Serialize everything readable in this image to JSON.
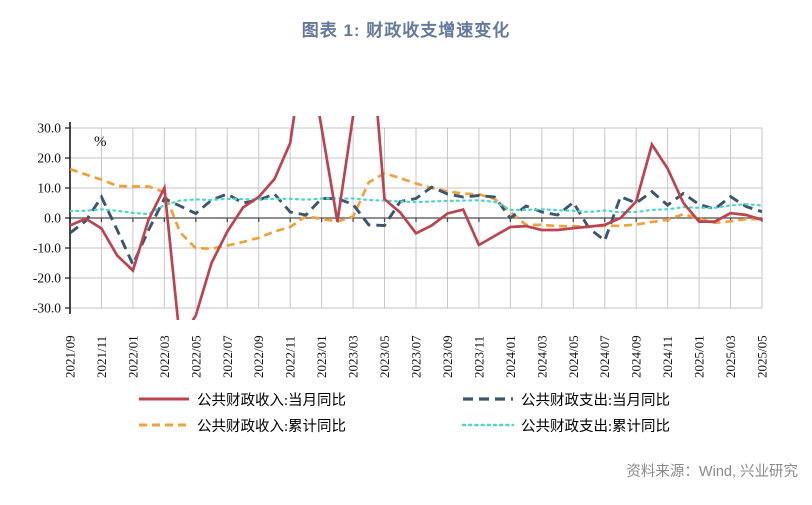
{
  "title": "图表 1:  财政收支增速变化",
  "title_color": "#64799c",
  "source_note": "资料来源：Wind, 兴业研究",
  "source_color": "#8a8a8a",
  "chart_data": {
    "type": "line",
    "unit_label": "%",
    "ylim": [
      -30,
      30
    ],
    "y_ticks": [
      "30.0",
      "20.0",
      "10.0",
      "0.0",
      "-10.0",
      "-20.0",
      "-30.0"
    ],
    "grid": "on",
    "legend_position": "bottom",
    "x_tick_labels": [
      "2021/09",
      "2021/11",
      "2022/01",
      "2022/03",
      "2022/05",
      "2022/07",
      "2022/09",
      "2022/11",
      "2023/01",
      "2023/03",
      "2023/05",
      "2023/07",
      "2023/09",
      "2023/11",
      "2024/01",
      "2024/03",
      "2024/05",
      "2024/07",
      "2024/09",
      "2024/11",
      "2025/01",
      "2025/03",
      "2025/05"
    ],
    "months": [
      "2021/09",
      "2021/10",
      "2021/11",
      "2021/12",
      "2022/01",
      "2022/02",
      "2022/03",
      "2022/04",
      "2022/05",
      "2022/06",
      "2022/07",
      "2022/08",
      "2022/09",
      "2022/10",
      "2022/11",
      "2022/12",
      "2023/01",
      "2023/02",
      "2023/03",
      "2023/04",
      "2023/05",
      "2023/06",
      "2023/07",
      "2023/08",
      "2023/09",
      "2023/10",
      "2023/11",
      "2023/12",
      "2024/01",
      "2024/02",
      "2024/03",
      "2024/04",
      "2024/05",
      "2024/06",
      "2024/07",
      "2024/08",
      "2024/09",
      "2024/10",
      "2024/11",
      "2024/12",
      "2025/01",
      "2025/02",
      "2025/03",
      "2025/04",
      "2025/05"
    ],
    "series": [
      {
        "id": "revenue-monthly",
        "name": "公共财政收入:当月同比",
        "color": "#bc4450",
        "style": "solid",
        "values": [
          -2.5,
          -0.2,
          -3.5,
          -12.5,
          -17.5,
          -0.5,
          10.0,
          -41.0,
          -32.5,
          -15.0,
          -4.5,
          3.5,
          7.0,
          13.0,
          25.0,
          61.0,
          null,
          -1.2,
          34.0,
          70.0,
          6.3,
          1.8,
          -5.1,
          -2.5,
          1.5,
          2.8,
          -9.0,
          -6.0,
          -3.0,
          -2.7,
          -4.0,
          -4.0,
          -3.4,
          -2.9,
          -2.3,
          0.0,
          5.5,
          24.5,
          16.5,
          5.0,
          -1.2,
          -1.2,
          1.6,
          1.0,
          -0.6
        ]
      },
      {
        "id": "expenditure-monthly",
        "name": "公共财政支出:当月同比",
        "color": "#3b566f",
        "style": "dashed",
        "values": [
          -5.0,
          -1.0,
          7.0,
          -4.0,
          -15.5,
          -4.0,
          6.5,
          4.0,
          1.5,
          6.0,
          8.0,
          5.0,
          6.0,
          8.0,
          2.0,
          1.0,
          6.5,
          6.5,
          4.5,
          -2.3,
          -2.5,
          5.5,
          6.5,
          10.3,
          8.0,
          7.0,
          7.5,
          7.0,
          0.0,
          4.0,
          2.0,
          1.0,
          5.2,
          -3.4,
          -7.5,
          7.1,
          5.0,
          8.8,
          4.3,
          8.2,
          4.5,
          3.0,
          7.1,
          3.8,
          2.1
        ]
      },
      {
        "id": "revenue-cumulative",
        "name": "公共财政收入:累计同比",
        "color": "#f0a13c",
        "style": "dashed",
        "values": [
          16.3,
          14.5,
          12.8,
          10.7,
          10.5,
          10.5,
          8.6,
          -4.8,
          -10.1,
          -10.2,
          -9.2,
          -8.0,
          -6.6,
          -4.5,
          -3.0,
          0.6,
          -0.3,
          -1.2,
          0.5,
          11.9,
          14.9,
          13.3,
          11.5,
          10.0,
          8.9,
          8.1,
          7.9,
          6.4,
          2.0,
          -2.3,
          -2.3,
          -2.7,
          -2.8,
          -2.8,
          -2.6,
          -2.6,
          -2.2,
          -1.3,
          -0.6,
          1.3,
          -0.2,
          -1.6,
          -1.1,
          -0.4,
          -0.3
        ]
      },
      {
        "id": "expenditure-cumulative",
        "name": "公共财政支出:累计同比",
        "color": "#4fd5cb",
        "style": "dotted",
        "values": [
          2.3,
          2.4,
          2.9,
          2.4,
          1.7,
          1.3,
          4.3,
          5.8,
          6.2,
          6.0,
          6.4,
          6.3,
          6.2,
          6.4,
          6.4,
          6.1,
          6.5,
          6.5,
          6.5,
          6.0,
          5.8,
          5.5,
          5.3,
          5.5,
          5.7,
          5.8,
          5.9,
          5.4,
          2.7,
          2.7,
          2.9,
          2.6,
          2.4,
          2.0,
          2.5,
          1.9,
          2.0,
          2.7,
          2.9,
          3.6,
          3.4,
          3.4,
          4.2,
          4.6,
          4.2
        ]
      }
    ]
  }
}
